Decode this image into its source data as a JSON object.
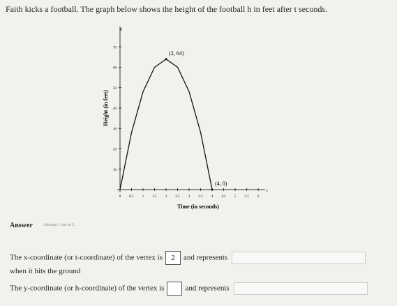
{
  "question": "Faith kicks a football. The graph below shows the height of the football h in feet after t seconds.",
  "graph": {
    "type": "line",
    "x_label": "Time (in seconds)",
    "y_label": "Height (in feet)",
    "x_axis_letter": "t",
    "y_axis_letter": "h",
    "x": [
      0,
      0.5,
      1,
      1.5,
      2,
      2.5,
      3,
      3.5,
      4
    ],
    "series": [
      {
        "color": "#111111",
        "values": [
          0,
          28,
          48,
          60,
          64,
          60,
          48,
          28,
          0
        ]
      }
    ],
    "xlim": [
      0,
      6.3
    ],
    "ylim": [
      0,
      80
    ],
    "xticks": [
      0,
      0.5,
      1,
      1.5,
      2,
      2.5,
      3,
      3.5,
      4,
      4.5,
      5,
      5.5,
      6
    ],
    "yticks": [
      10,
      20,
      30,
      40,
      50,
      60,
      70
    ],
    "annotations": [
      {
        "text": "(2, 64)",
        "x": 2,
        "y": 64
      },
      {
        "text": "(4, 0)",
        "x": 4,
        "y": 0
      }
    ]
  },
  "answer": {
    "label": "Answer",
    "attempt": "Attempt 1 out of 2",
    "line1": {
      "before": "The x-coordinate (or t-coordinate) of the vertex is",
      "input": "2",
      "after": "and represents"
    },
    "line1_end": "when it hits the ground",
    "line2": {
      "before": "The y-coordinate (or h-coordinate) of the vertex is",
      "after": "and represents"
    }
  }
}
